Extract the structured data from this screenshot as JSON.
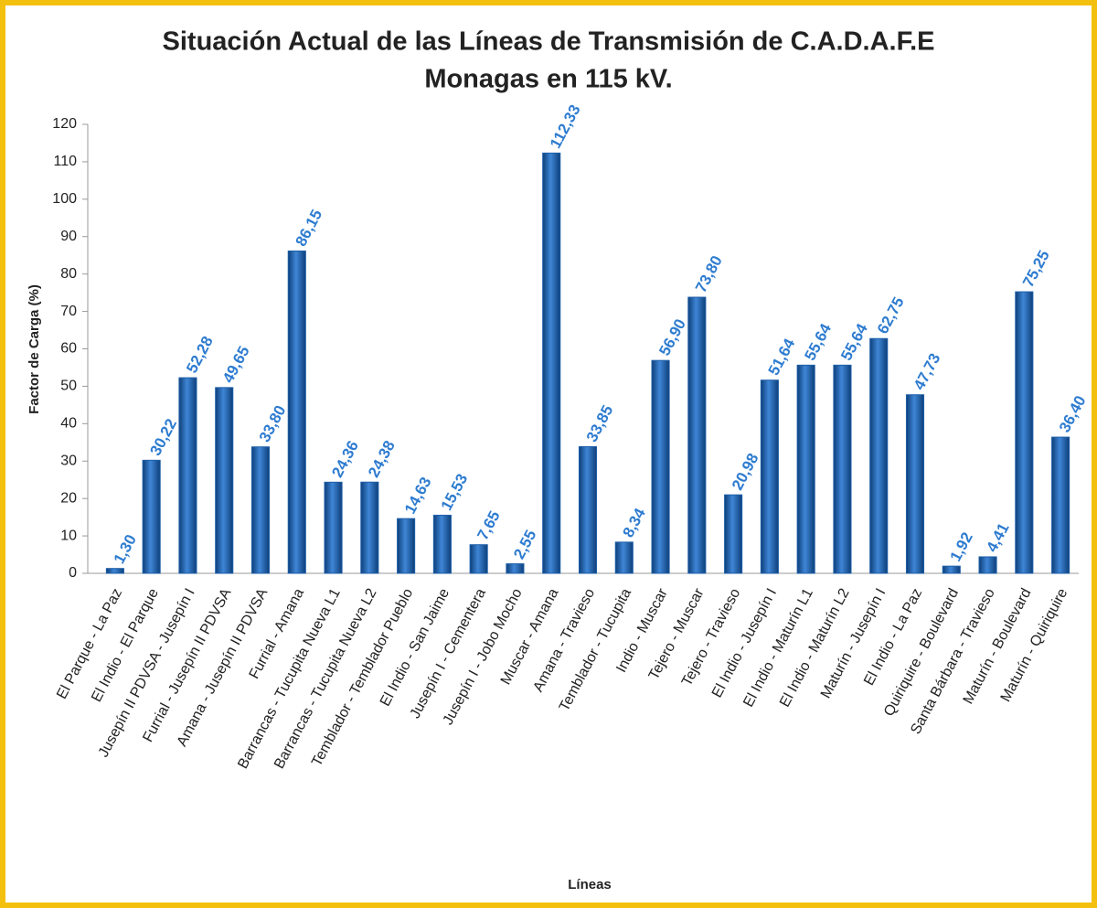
{
  "chart_data": {
    "type": "bar",
    "title": "Situación Actual de las Líneas de Transmisión de C.A.D.A.F.E",
    "subtitle": "Monagas en 115 kV.",
    "x_label": "Líneas",
    "y_label": "Factor de Carga (%)",
    "categories": [
      "El Parque - La Paz",
      "El Indio - El Parque",
      "Jusepín II PDVSA - Jusepín I",
      "Furrial - Jusepín II PDVSA",
      "Amana - Jusepín II PDVSA",
      "Furrial - Amana",
      "Barrancas - Tucupita Nueva L1",
      "Barrancas - Tucupita Nueva L2",
      "Temblador - Temblador Pueblo",
      "El Indio - San Jaime",
      "Jusepín I - Cementera",
      "Jusepín I - Jobo Mocho",
      "Muscar - Amana",
      "Amana - Travieso",
      "Temblador - Tucupita",
      "Indio - Muscar",
      "Tejero - Muscar",
      "Tejero - Travieso",
      "El Indio - Jusepín I",
      "El Indio - Maturín L1",
      "El Indio - Maturín L2",
      "Maturín - Jusepín I",
      "El Indio - La Paz",
      "Quiriquire - Boulevard",
      "Santa Bárbara - Travieso",
      "Maturín - Boulevard",
      "Maturín - Quiriquire"
    ],
    "values": [
      1.3,
      30.22,
      52.28,
      49.65,
      33.8,
      86.15,
      24.36,
      24.38,
      14.63,
      15.53,
      7.65,
      2.55,
      112.33,
      33.85,
      8.34,
      56.9,
      73.8,
      20.98,
      51.64,
      55.64,
      55.64,
      62.75,
      47.73,
      1.92,
      4.41,
      75.25,
      36.4
    ],
    "value_labels": [
      "1,30",
      "30,22",
      "52,28",
      "49,65",
      "33,80",
      "86,15",
      "24,36",
      "24,38",
      "14,63",
      "15,53",
      "7,65",
      "2,55",
      "112,33",
      "33,85",
      "8,34",
      "56,90",
      "73,80",
      "20,98",
      "51,64",
      "55,64",
      "55,64",
      "62,75",
      "47,73",
      "1,92",
      "4,41",
      "75,25",
      "36,40"
    ],
    "color": "#1f5fa8",
    "label_color": "#2e7cd0",
    "ylim": [
      0,
      120
    ],
    "yticks": [
      0,
      10,
      20,
      30,
      40,
      50,
      60,
      70,
      80,
      90,
      100,
      110,
      120
    ],
    "grid": false
  }
}
